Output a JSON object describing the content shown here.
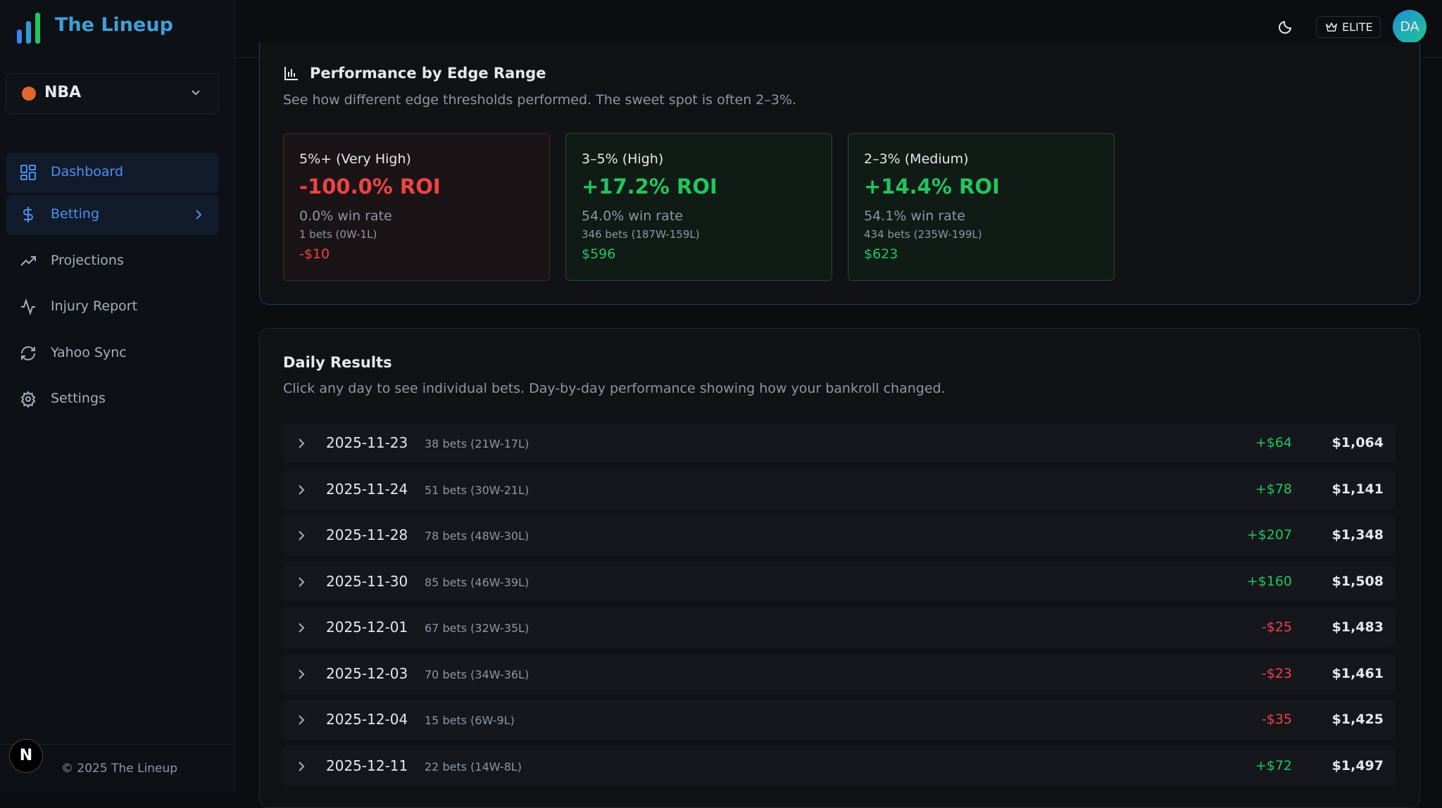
{
  "sidebar": {
    "brand": "The Lineup",
    "sport": "NBA",
    "nav": [
      "Dashboard",
      "Betting",
      "Projections",
      "Injury Report",
      "Yahoo Sync",
      "Settings"
    ],
    "footer_badge": "N",
    "footer": "© 2025 The Lineup"
  },
  "header": {
    "badge": "ELITE",
    "avatar": "DA"
  },
  "edge_section": {
    "title": "Performance by Edge Range",
    "subtitle": "See how different edge thresholds performed. The sweet spot is often 2–3%.",
    "cards": [
      {
        "label": "5%+ (Very High)",
        "roi": "-100.0% ROI",
        "win_rate": "0.0% win rate",
        "bets": "1 bets (0W-1L)",
        "profit": "-$10"
      },
      {
        "label": "3–5% (High)",
        "roi": "+17.2% ROI",
        "win_rate": "54.0% win rate",
        "bets": "346 bets (187W-159L)",
        "profit": "$596"
      },
      {
        "label": "2–3% (Medium)",
        "roi": "+14.4% ROI",
        "win_rate": "54.1% win rate",
        "bets": "434 bets (235W-199L)",
        "profit": "$623"
      }
    ]
  },
  "daily_section": {
    "title": "Daily Results",
    "subtitle": "Click any day to see individual bets. Day-by-day performance showing how your bankroll changed.",
    "rows": [
      {
        "date": "2025-11-23",
        "bets": "38 bets (21W-17L)",
        "change": "+$64",
        "bankroll": "$1,064"
      },
      {
        "date": "2025-11-24",
        "bets": "51 bets (30W-21L)",
        "change": "+$78",
        "bankroll": "$1,141"
      },
      {
        "date": "2025-11-28",
        "bets": "78 bets (48W-30L)",
        "change": "+$207",
        "bankroll": "$1,348"
      },
      {
        "date": "2025-11-30",
        "bets": "85 bets (46W-39L)",
        "change": "+$160",
        "bankroll": "$1,508"
      },
      {
        "date": "2025-12-01",
        "bets": "67 bets (32W-35L)",
        "change": "-$25",
        "bankroll": "$1,483"
      },
      {
        "date": "2025-12-03",
        "bets": "70 bets (34W-36L)",
        "change": "-$23",
        "bankroll": "$1,461"
      },
      {
        "date": "2025-12-04",
        "bets": "15 bets (6W-9L)",
        "change": "-$35",
        "bankroll": "$1,425"
      },
      {
        "date": "2025-12-11",
        "bets": "22 bets (14W-8L)",
        "change": "+$72",
        "bankroll": "$1,497"
      }
    ]
  }
}
